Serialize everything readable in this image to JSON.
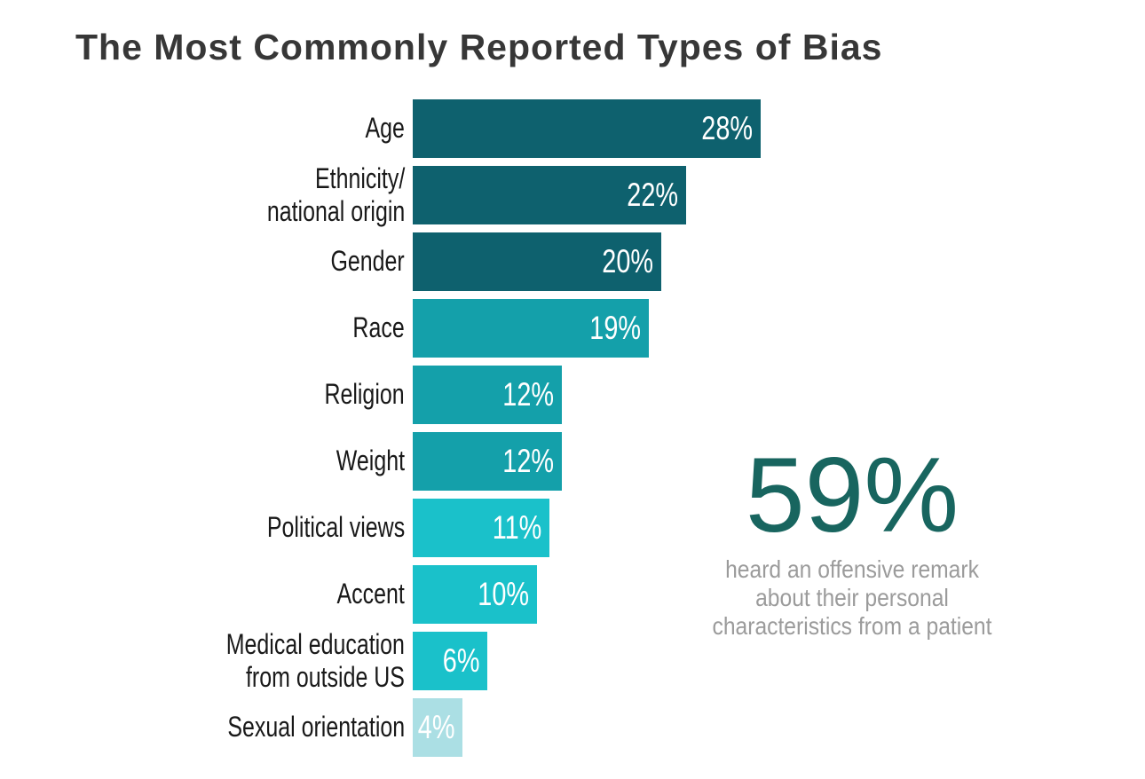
{
  "title": "The Most Commonly Reported Types of Bias",
  "chart_data": {
    "type": "bar",
    "orientation": "horizontal",
    "unit": "%",
    "title": "The Most Commonly Reported Types of Bias",
    "xlabel": "",
    "ylabel": "",
    "axes_visible": false,
    "grid": false,
    "legend": "none",
    "value_labels": "inside-end, white",
    "categories": [
      "Age",
      "Ethnicity/national origin",
      "Gender",
      "Race",
      "Religion",
      "Weight",
      "Political views",
      "Accent",
      "Medical education from outside US",
      "Sexual orientation"
    ],
    "values": [
      28,
      22,
      20,
      19,
      12,
      12,
      11,
      10,
      6,
      4
    ],
    "rows": [
      {
        "label": "Age",
        "value": 28,
        "display": "28%",
        "color": "#0e616e"
      },
      {
        "label": "Ethnicity/\nnational origin",
        "value": 22,
        "display": "22%",
        "color": "#0e616e"
      },
      {
        "label": "Gender",
        "value": 20,
        "display": "20%",
        "color": "#0e616e"
      },
      {
        "label": "Race",
        "value": 19,
        "display": "19%",
        "color": "#14a0aa"
      },
      {
        "label": "Religion",
        "value": 12,
        "display": "12%",
        "color": "#14a0aa"
      },
      {
        "label": "Weight",
        "value": 12,
        "display": "12%",
        "color": "#14a0aa"
      },
      {
        "label": "Political views",
        "value": 11,
        "display": "11%",
        "color": "#1ac1ca"
      },
      {
        "label": "Accent",
        "value": 10,
        "display": "10%",
        "color": "#1ac1ca"
      },
      {
        "label": "Medical education\nfrom outside US",
        "value": 6,
        "display": "6%",
        "color": "#1ac1ca"
      },
      {
        "label": "Sexual orientation",
        "value": 4,
        "display": "4%",
        "color": "#abdfe4"
      }
    ]
  },
  "stat": {
    "value": "59%",
    "lines": [
      "heard an offensive remark",
      "about their personal",
      "characteristics from a patient"
    ],
    "value_color": "#18655f",
    "caption_color": "#9b9b9b"
  },
  "colors": {
    "background": "#ffffff",
    "title_text": "#373737",
    "category_label_text": "#191919",
    "bar_value_text": "#ffffff",
    "bar_dark_teal": "#0e616e",
    "bar_medium_teal": "#14a0aa",
    "bar_bright_cyan": "#1ac1ca",
    "bar_pale_cyan": "#abdfe4",
    "stat_value": "#18655f",
    "stat_caption": "#9b9b9b"
  }
}
